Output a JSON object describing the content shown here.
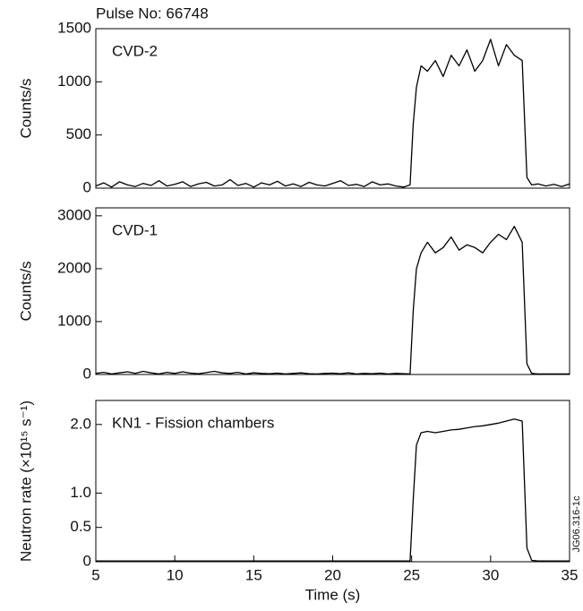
{
  "figure_id": "JG06.316-1c",
  "chart_data": [
    {
      "type": "line",
      "title": "Pulse No: 66748",
      "label": "CVD-2",
      "ylabel": "Counts/s",
      "xlim": [
        5,
        35
      ],
      "ylim": [
        0,
        1500
      ],
      "yticks": [
        0,
        500,
        1000,
        1500
      ],
      "x": [
        5,
        5.5,
        6,
        6.5,
        7,
        7.5,
        8,
        8.5,
        9,
        9.5,
        10,
        10.5,
        11,
        11.5,
        12,
        12.5,
        13,
        13.5,
        14,
        14.5,
        15,
        15.5,
        16,
        16.5,
        17,
        17.5,
        18,
        18.5,
        19,
        19.5,
        20,
        20.5,
        21,
        21.5,
        22,
        22.5,
        23,
        23.5,
        24,
        24.5,
        24.9,
        25.1,
        25.3,
        25.6,
        26,
        26.5,
        27,
        27.5,
        28,
        28.5,
        29,
        29.5,
        30,
        30.5,
        31,
        31.5,
        32,
        32.3,
        32.6,
        33,
        33.5,
        34,
        34.5,
        35
      ],
      "series": [
        {
          "name": "CVD-2",
          "color": "#000000",
          "values": [
            20,
            50,
            10,
            60,
            30,
            15,
            45,
            25,
            70,
            20,
            35,
            60,
            15,
            40,
            55,
            20,
            30,
            80,
            25,
            45,
            10,
            50,
            30,
            65,
            20,
            40,
            15,
            55,
            30,
            20,
            45,
            70,
            25,
            35,
            15,
            60,
            30,
            40,
            20,
            10,
            30,
            600,
            950,
            1150,
            1100,
            1200,
            1050,
            1250,
            1150,
            1300,
            1100,
            1200,
            1400,
            1150,
            1350,
            1250,
            1200,
            100,
            30,
            40,
            20,
            35,
            15,
            40
          ]
        }
      ]
    },
    {
      "type": "line",
      "label": "CVD-1",
      "ylabel": "Counts/s",
      "xlim": [
        5,
        35
      ],
      "ylim": [
        0,
        3150
      ],
      "yticks": [
        0,
        1000,
        2000,
        3000
      ],
      "x": [
        5,
        5.5,
        6,
        6.5,
        7,
        7.5,
        8,
        8.5,
        9,
        9.5,
        10,
        10.5,
        11,
        11.5,
        12,
        12.5,
        13,
        13.5,
        14,
        14.5,
        15,
        15.5,
        16,
        16.5,
        17,
        17.5,
        18,
        18.5,
        19,
        19.5,
        20,
        20.5,
        21,
        21.5,
        22,
        22.5,
        23,
        23.5,
        24,
        24.5,
        24.9,
        25.1,
        25.3,
        25.6,
        26,
        26.5,
        27,
        27.5,
        28,
        28.5,
        29,
        29.5,
        30,
        30.5,
        31,
        31.5,
        32,
        32.3,
        32.6,
        33,
        33.5,
        34,
        34.5,
        35
      ],
      "series": [
        {
          "name": "CVD-1",
          "color": "#000000",
          "values": [
            20,
            40,
            10,
            30,
            50,
            20,
            60,
            30,
            10,
            40,
            20,
            50,
            25,
            15,
            35,
            60,
            30,
            20,
            40,
            10,
            30,
            20,
            15,
            25,
            10,
            20,
            30,
            15,
            10,
            20,
            25,
            15,
            30,
            10,
            20,
            15,
            25,
            10,
            20,
            15,
            10,
            1200,
            2000,
            2300,
            2500,
            2300,
            2400,
            2600,
            2350,
            2450,
            2400,
            2300,
            2500,
            2650,
            2550,
            2800,
            2500,
            200,
            20,
            10,
            10,
            10,
            10,
            10
          ]
        }
      ]
    },
    {
      "type": "line",
      "label": "KN1 - Fission chambers",
      "ylabel": "Neutron rate (×10¹⁵ s⁻¹)",
      "xlabel": "Time (s)",
      "xlim": [
        5,
        35
      ],
      "xticks": [
        5,
        10,
        15,
        20,
        25,
        30,
        35
      ],
      "ylim": [
        0,
        2.35
      ],
      "yticks": [
        0,
        0.5,
        {
          "value": 1,
          "label": "1.0"
        },
        {
          "value": 2,
          "label": "2.0"
        }
      ],
      "x": [
        5,
        5.5,
        6,
        6.5,
        7,
        7.5,
        8,
        8.5,
        9,
        9.5,
        10,
        10.5,
        11,
        11.5,
        12,
        12.5,
        13,
        13.5,
        14,
        14.5,
        15,
        15.5,
        16,
        16.5,
        17,
        17.5,
        18,
        18.5,
        19,
        19.5,
        20,
        20.5,
        21,
        21.5,
        22,
        22.5,
        23,
        23.5,
        24,
        24.5,
        24.9,
        25.1,
        25.3,
        25.6,
        26,
        26.5,
        27,
        27.5,
        28,
        28.5,
        29,
        29.5,
        30,
        30.5,
        31,
        31.5,
        32,
        32.3,
        32.6,
        33,
        33.5,
        34,
        34.5,
        35
      ],
      "series": [
        {
          "name": "KN1",
          "color": "#000000",
          "values": [
            0.01,
            0.01,
            0.01,
            0.01,
            0.01,
            0.01,
            0.01,
            0.01,
            0.01,
            0.01,
            0.01,
            0.01,
            0.01,
            0.01,
            0.01,
            0.01,
            0.01,
            0.01,
            0.01,
            0.01,
            0.01,
            0.01,
            0.01,
            0.01,
            0.01,
            0.01,
            0.01,
            0.01,
            0.01,
            0.01,
            0.01,
            0.01,
            0.01,
            0.01,
            0.01,
            0.01,
            0.01,
            0.01,
            0.01,
            0.01,
            0.01,
            0.9,
            1.7,
            1.88,
            1.9,
            1.88,
            1.9,
            1.92,
            1.93,
            1.95,
            1.97,
            1.98,
            2.0,
            2.02,
            2.05,
            2.08,
            2.05,
            0.2,
            0.02,
            0.01,
            0.01,
            0.01,
            0.01,
            0.01
          ]
        }
      ]
    }
  ]
}
